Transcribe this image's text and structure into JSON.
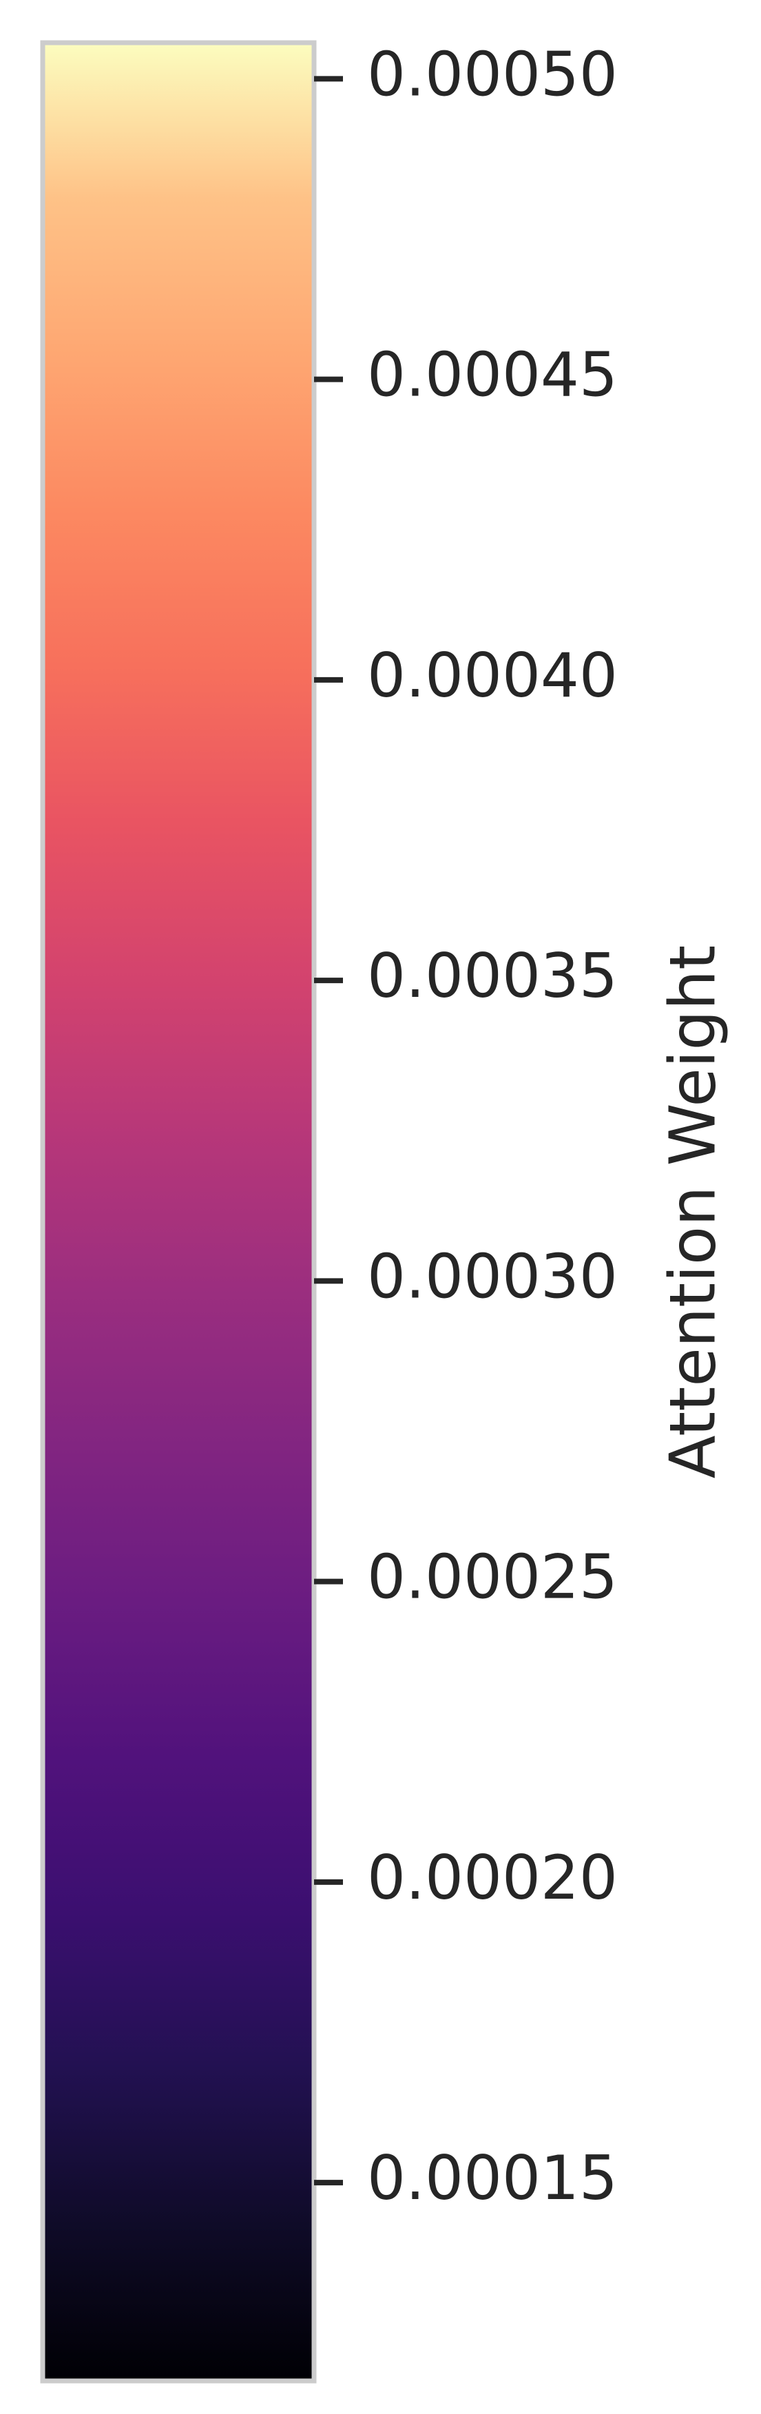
{
  "chart_data": {
    "type": "heatmap",
    "title": "",
    "ylabel": "Attention Weight",
    "colormap": "magma",
    "ylim": [
      0.000117,
      0.000506
    ],
    "tick_values": [
      0.00015,
      0.0002,
      0.00025,
      0.0003,
      0.00035,
      0.0004,
      0.00045,
      0.0005
    ],
    "tick_labels": [
      "0.00015",
      "0.00020",
      "0.00025",
      "0.00030",
      "0.00035",
      "0.00040",
      "0.00045",
      "0.00050"
    ],
    "color_stops": [
      "#000004",
      "#0f0b28",
      "#221151",
      "#3b0f70",
      "#51127c",
      "#6a1c81",
      "#822581",
      "#9b2e7f",
      "#b73779",
      "#d3436e",
      "#e95462",
      "#f7705c",
      "#fc8961",
      "#fea772",
      "#fec287",
      "#fcfdbf"
    ],
    "colors": {
      "frame": "#cccccc",
      "text": "#262626",
      "background": "#ffffff"
    }
  }
}
